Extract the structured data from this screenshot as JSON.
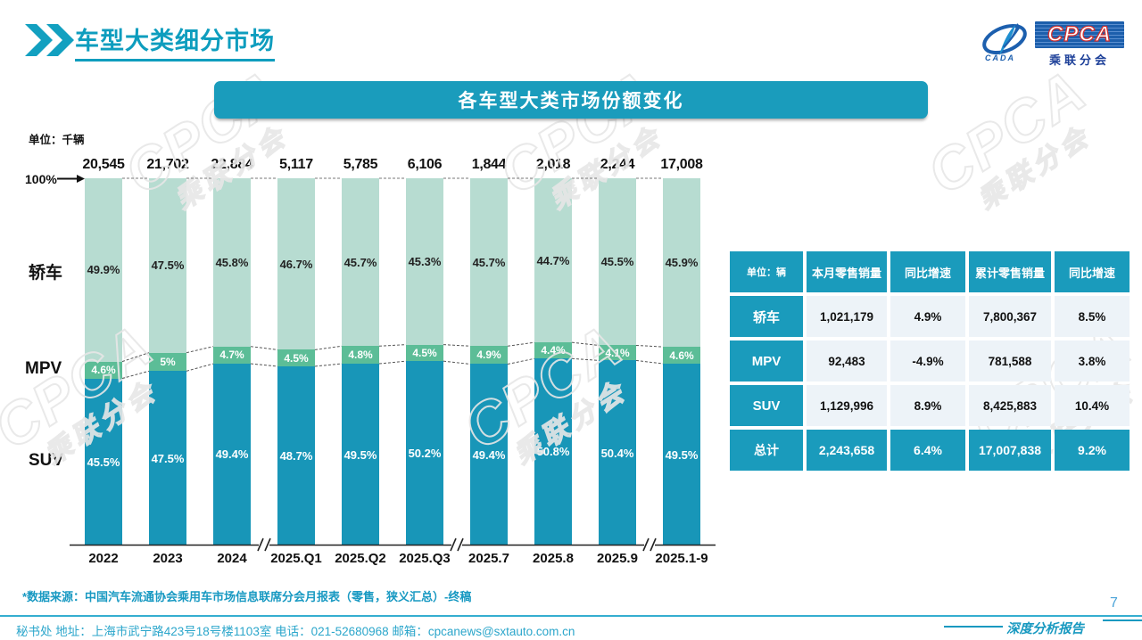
{
  "header": {
    "title": "车型大类细分市场",
    "logo": {
      "cpca": "CPCA",
      "sub": "乘联分会",
      "cada": "CADA"
    }
  },
  "chart": {
    "banner_title": "各车型大类市场份额变化",
    "unit_label": "单位：千辆",
    "pct_label": "100%"
  },
  "chart_data": {
    "type": "bar",
    "stacked": true,
    "unit": "千辆",
    "categories": [
      "2022",
      "2023",
      "2024",
      "2025.Q1",
      "2025.Q2",
      "2025.Q3",
      "2025.7",
      "2025.8",
      "2025.9",
      "2025.1-9"
    ],
    "totals": [
      "20,545",
      "21,702",
      "22,884",
      "5,117",
      "5,785",
      "6,106",
      "1,844",
      "2,018",
      "2,244",
      "17,008"
    ],
    "axis_breaks_after": [
      2,
      5,
      8
    ],
    "ylim": [
      0,
      100
    ],
    "series": [
      {
        "name": "轿车",
        "color": "#b7dcd1",
        "label_color": "#222",
        "values": [
          49.9,
          47.5,
          45.8,
          46.7,
          45.7,
          45.3,
          45.7,
          44.7,
          45.5,
          45.9
        ]
      },
      {
        "name": "MPV",
        "color": "#5cbd97",
        "label_color": "#fff",
        "values": [
          4.6,
          5.0,
          4.7,
          4.5,
          4.8,
          4.5,
          4.9,
          4.4,
          4.1,
          4.6
        ]
      },
      {
        "name": "SUV",
        "color": "#1896b8",
        "label_color": "#fff",
        "values": [
          45.5,
          47.5,
          49.4,
          48.7,
          49.5,
          50.2,
          49.4,
          50.8,
          50.4,
          49.5
        ]
      }
    ]
  },
  "table": {
    "headers": [
      "单位：辆",
      "本月零售销量",
      "同比增速",
      "累计零售销量",
      "同比增速"
    ],
    "rows": [
      {
        "label": "轿车",
        "cells": [
          "1,021,179",
          "4.9%",
          "7,800,367",
          "8.5%"
        ]
      },
      {
        "label": "MPV",
        "cells": [
          "92,483",
          "-4.9%",
          "781,588",
          "3.8%"
        ]
      },
      {
        "label": "SUV",
        "cells": [
          "1,129,996",
          "8.9%",
          "8,425,883",
          "10.4%"
        ]
      }
    ],
    "total_row": {
      "label": "总计",
      "cells": [
        "2,243,658",
        "6.4%",
        "17,007,838",
        "9.2%"
      ]
    }
  },
  "watermark": {
    "line1": "CPCA",
    "line2": "乘联分会"
  },
  "footer": {
    "source_note": "*数据来源：中国汽车流通协会乘用车市场信息联席分会月报表（零售，狭义汇总）-终稿",
    "secretariat": "秘书处  地址：上海市武宁路423号18号楼1103室 电话：021-52680968  邮箱：cpcanews@sxtauto.com.cn",
    "report_label": "深度分析报告",
    "page_number": "7"
  },
  "colors": {
    "accent_teal": "#1a9cbc",
    "sedan_green": "#b7dcd1",
    "mpv_green": "#5cbd97",
    "suv_teal": "#1896b8",
    "table_cell_bg": "#edf3f8",
    "footer_teal": "#2ba6cb"
  }
}
